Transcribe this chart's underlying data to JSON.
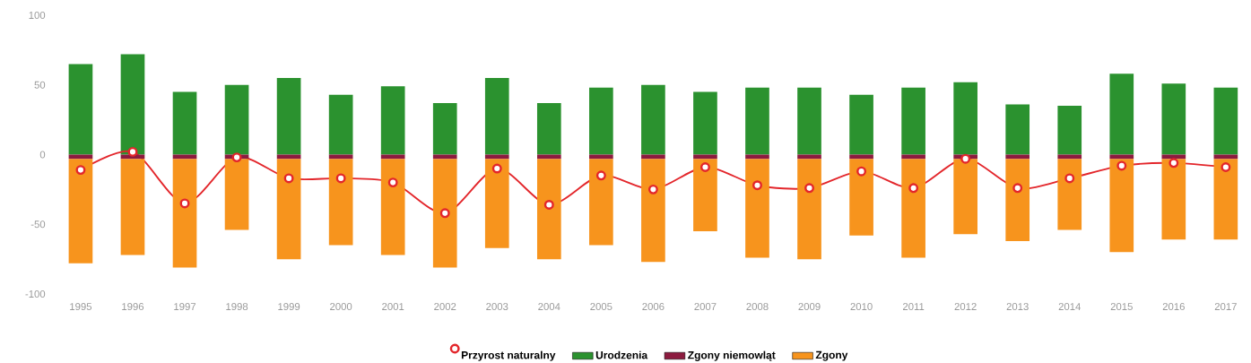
{
  "chart_data": {
    "type": "bar",
    "stacked": true,
    "categories": [
      "1995",
      "1996",
      "1997",
      "1998",
      "1999",
      "2000",
      "2001",
      "2002",
      "2003",
      "2004",
      "2005",
      "2006",
      "2007",
      "2008",
      "2009",
      "2010",
      "2011",
      "2012",
      "2013",
      "2014",
      "2015",
      "2016",
      "2017"
    ],
    "ylim": [
      -100,
      100
    ],
    "yticks": [
      -100,
      -50,
      0,
      50,
      100
    ],
    "legend": "bottom",
    "marker": "circle",
    "series": [
      {
        "name": "Przyrost naturalny",
        "type": "line",
        "color": "#e3262b",
        "values": [
          -11,
          2,
          -35,
          -2,
          -17,
          -17,
          -20,
          -42,
          -10,
          -36,
          -15,
          -25,
          -9,
          -22,
          -24,
          -12,
          -24,
          -3,
          -24,
          -17,
          -8,
          -6,
          -9
        ]
      },
      {
        "name": "Urodzenia",
        "color": "#2b922f",
        "values": [
          65,
          72,
          45,
          50,
          55,
          43,
          49,
          37,
          55,
          37,
          48,
          50,
          45,
          48,
          48,
          43,
          48,
          52,
          36,
          35,
          58,
          51,
          48
        ]
      },
      {
        "name": "Zgony niemowląt",
        "color": "#8c1b3f",
        "values": [
          -3,
          -3,
          -3,
          -3,
          -3,
          -3,
          -3,
          -3,
          -3,
          -3,
          -3,
          -3,
          -3,
          -3,
          -3,
          -3,
          -3,
          -3,
          -3,
          -3,
          -3,
          -3,
          -3
        ]
      },
      {
        "name": "Zgony",
        "color": "#f7941d",
        "values": [
          -75,
          -69,
          -78,
          -51,
          -72,
          -62,
          -69,
          -78,
          -64,
          -72,
          -62,
          -74,
          -52,
          -71,
          -72,
          -55,
          -71,
          -54,
          -59,
          -51,
          -67,
          -58,
          -58
        ]
      }
    ]
  }
}
